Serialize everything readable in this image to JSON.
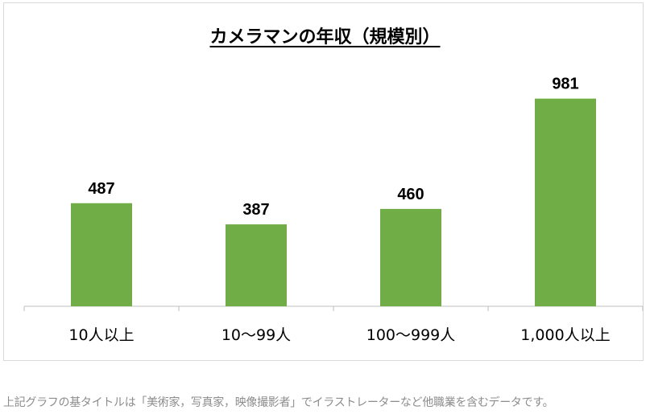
{
  "chart_data": {
    "type": "bar",
    "title": "カメラマンの年収（規模別）",
    "categories": [
      "10人以上",
      "10〜99人",
      "100〜999人",
      "1,000人以上"
    ],
    "values": [
      487,
      387,
      460,
      981
    ],
    "xlabel": "",
    "ylabel": "",
    "ylim": [
      0,
      1200
    ],
    "grid": false,
    "bar_color": "#70ad47"
  },
  "note": "上記グラフの基タイトルは「美術家，写真家，映像撮影者」でイラストレーターなど他職業を含むデータです。"
}
